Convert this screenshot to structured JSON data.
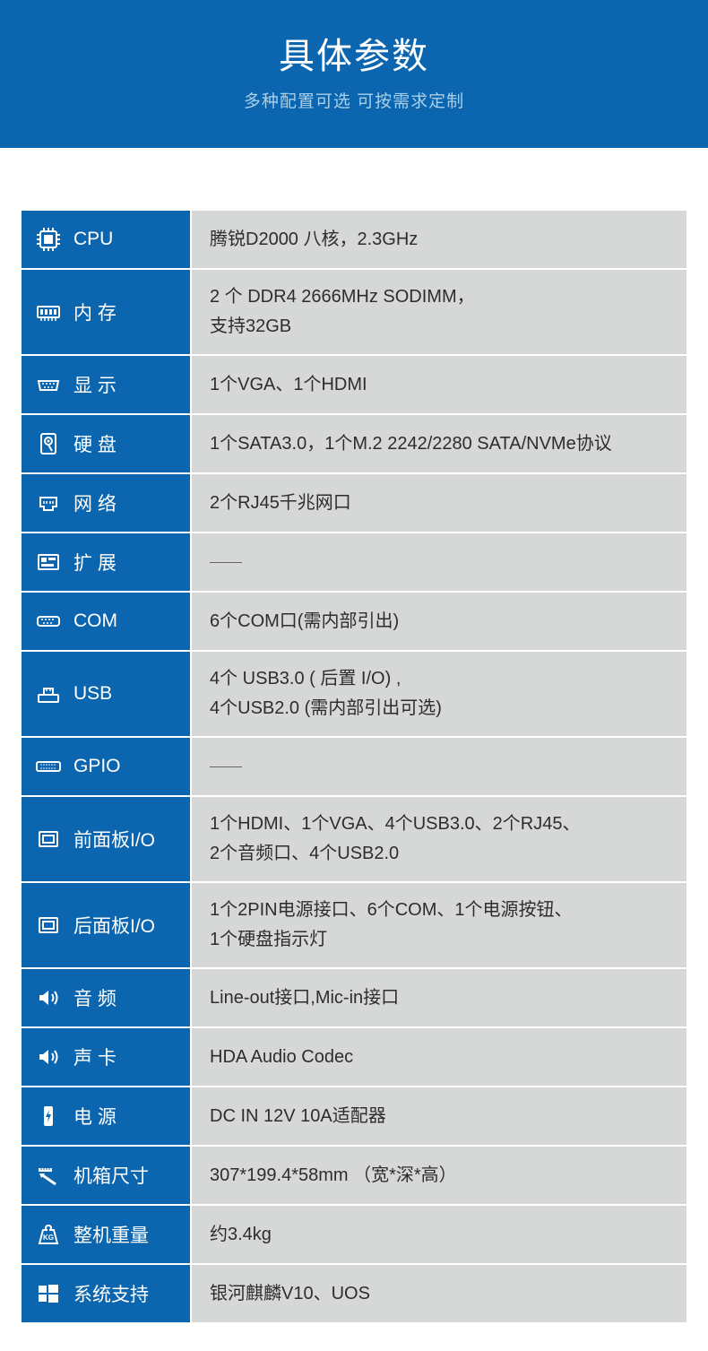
{
  "header": {
    "title": "具体参数",
    "subtitle": "多种配置可选 可按需求定制"
  },
  "colors": {
    "header_bg": "#0b66af",
    "label_bg": "#0b66af",
    "value_bg": "#d6d8d7",
    "text_light": "#ffffff",
    "text_dark": "#2d2d2d",
    "subtitle": "#a9cfe9"
  },
  "rows": [
    {
      "icon": "cpu",
      "label": "CPU",
      "value": "腾锐D2000 八核，2.3GHz",
      "spaced": false
    },
    {
      "icon": "ram",
      "label": "内 存",
      "value": "2 个 DDR4 2666MHz SODIMM，\n支持32GB",
      "spaced": false
    },
    {
      "icon": "vga",
      "label": "显 示",
      "value": "1个VGA、1个HDMI",
      "spaced": false
    },
    {
      "icon": "hdd",
      "label": "硬 盘",
      "value": "1个SATA3.0，1个M.2 2242/2280 SATA/NVMe协议",
      "spaced": false
    },
    {
      "icon": "lan",
      "label": "网 络",
      "value": "2个RJ45千兆网口",
      "spaced": false
    },
    {
      "icon": "expand",
      "label": "扩 展",
      "value": "—",
      "dash": true,
      "spaced": false
    },
    {
      "icon": "com",
      "label": "COM",
      "value": "6个COM口(需内部引出)",
      "spaced": false
    },
    {
      "icon": "usb",
      "label": "USB",
      "value": "4个 USB3.0 ( 后置 I/O) ,\n4个USB2.0 (需内部引出可选)",
      "spaced": false
    },
    {
      "icon": "gpio",
      "label": "GPIO",
      "value": "—",
      "dash": true,
      "spaced": false
    },
    {
      "icon": "panel",
      "label": "前面板I/O",
      "value": "1个HDMI、1个VGA、4个USB3.0、2个RJ45、\n2个音频口、4个USB2.0",
      "spaced": false
    },
    {
      "icon": "panel",
      "label": "后面板I/O",
      "value": "1个2PIN电源接口、6个COM、1个电源按钮、\n1个硬盘指示灯",
      "spaced": false
    },
    {
      "icon": "audio",
      "label": "音 频",
      "value": "Line-out接口,Mic-in接口",
      "spaced": false
    },
    {
      "icon": "audio",
      "label": "声 卡",
      "value": "HDA Audio Codec",
      "spaced": false
    },
    {
      "icon": "power",
      "label": "电 源",
      "value": "DC IN 12V 10A适配器",
      "spaced": false
    },
    {
      "icon": "size",
      "label": "机箱尺寸",
      "value": "307*199.4*58mm （宽*深*高）",
      "spaced": false
    },
    {
      "icon": "weight",
      "label": "整机重量",
      "value": "约3.4kg",
      "spaced": false
    },
    {
      "icon": "os",
      "label": "系统支持",
      "value": "银河麒麟V10、UOS",
      "spaced": false
    }
  ]
}
